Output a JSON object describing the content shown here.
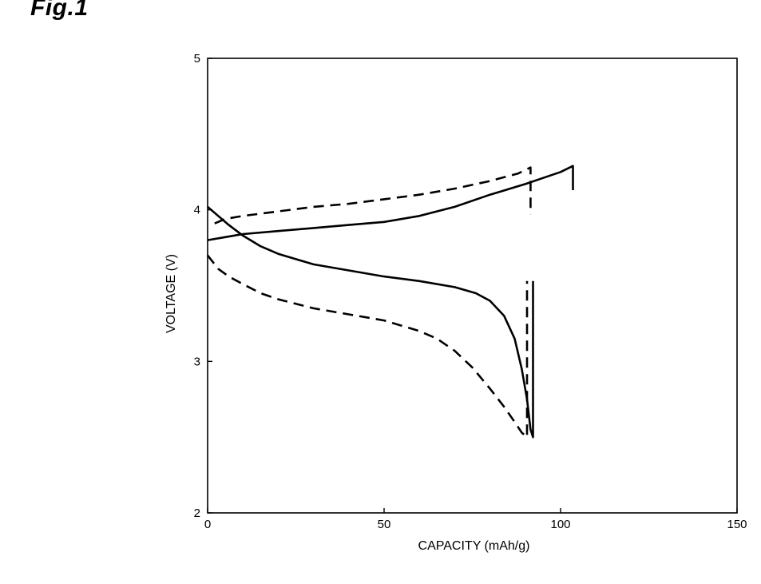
{
  "figure_label": "Fig.1",
  "chart_data": {
    "type": "line",
    "title": "",
    "xlabel": "CAPACITY (mAh/g)",
    "ylabel": "VOLTAGE (V)",
    "xlim": [
      0,
      150
    ],
    "ylim": [
      2,
      5
    ],
    "xticks": [
      0,
      50,
      100,
      150
    ],
    "yticks": [
      2,
      3,
      4,
      5
    ],
    "grid": false,
    "legend": "none",
    "series": [
      {
        "style": "solid",
        "x": [
          0,
          5,
          10,
          20,
          30,
          40,
          50,
          60,
          70,
          80,
          90,
          95,
          100,
          103.5,
          103.5
        ],
        "y": [
          3.8,
          3.82,
          3.84,
          3.86,
          3.88,
          3.9,
          3.92,
          3.96,
          4.02,
          4.1,
          4.17,
          4.21,
          4.25,
          4.29,
          4.13
        ]
      },
      {
        "style": "dashed",
        "x": [
          2,
          5,
          10,
          20,
          30,
          40,
          50,
          60,
          70,
          80,
          88,
          91.5,
          91.5
        ],
        "y": [
          3.91,
          3.94,
          3.96,
          3.99,
          4.02,
          4.04,
          4.07,
          4.1,
          4.14,
          4.19,
          4.24,
          4.28,
          3.97
        ]
      },
      {
        "style": "solid",
        "x": [
          0,
          3,
          6,
          10,
          15,
          20,
          30,
          40,
          50,
          60,
          70,
          76,
          80,
          84,
          87,
          89,
          90.5,
          91.5,
          92.2,
          92.2
        ],
        "y": [
          4.02,
          3.96,
          3.9,
          3.83,
          3.76,
          3.71,
          3.64,
          3.6,
          3.56,
          3.53,
          3.49,
          3.45,
          3.4,
          3.3,
          3.15,
          2.95,
          2.75,
          2.55,
          2.5,
          3.53
        ]
      },
      {
        "style": "dashed",
        "x": [
          0,
          3,
          6,
          10,
          15,
          20,
          30,
          40,
          50,
          60,
          65,
          70,
          75,
          80,
          84,
          87,
          89,
          90.5,
          90.5
        ],
        "y": [
          3.7,
          3.61,
          3.56,
          3.51,
          3.45,
          3.41,
          3.35,
          3.31,
          3.27,
          3.2,
          3.15,
          3.07,
          2.96,
          2.82,
          2.7,
          2.6,
          2.53,
          2.5,
          3.53
        ]
      }
    ]
  }
}
